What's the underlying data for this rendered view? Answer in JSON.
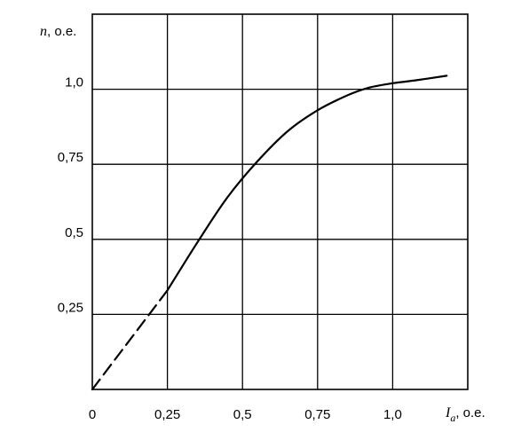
{
  "chart_data": {
    "type": "line",
    "ylabel": {
      "var": "n",
      "unit": ", о.е."
    },
    "xlabel": {
      "var": "I",
      "sub": "a",
      "unit": ", о.е."
    },
    "xlim": [
      0,
      1.25
    ],
    "ylim": [
      0,
      1.25
    ],
    "x_ticks": [
      {
        "value": 0,
        "label": "0"
      },
      {
        "value": 0.25,
        "label": "0,25"
      },
      {
        "value": 0.5,
        "label": "0,5"
      },
      {
        "value": 0.75,
        "label": "0,75"
      },
      {
        "value": 1.0,
        "label": "1,0"
      }
    ],
    "y_ticks": [
      {
        "value": 0.25,
        "label": "0,25"
      },
      {
        "value": 0.5,
        "label": "0,5"
      },
      {
        "value": 0.75,
        "label": "0,75"
      },
      {
        "value": 1.0,
        "label": "1,0"
      }
    ],
    "grid": true,
    "series": [
      {
        "style": "dashed",
        "color": "#000000",
        "x": [
          0.0,
          0.25
        ],
        "y": [
          0.0,
          0.33
        ]
      },
      {
        "style": "solid",
        "color": "#000000",
        "x": [
          0.25,
          0.35,
          0.45,
          0.55,
          0.65,
          0.75,
          0.85,
          0.92,
          1.0,
          1.08,
          1.18
        ],
        "y": [
          0.33,
          0.49,
          0.64,
          0.76,
          0.86,
          0.93,
          0.98,
          1.005,
          1.02,
          1.03,
          1.045
        ]
      }
    ]
  }
}
